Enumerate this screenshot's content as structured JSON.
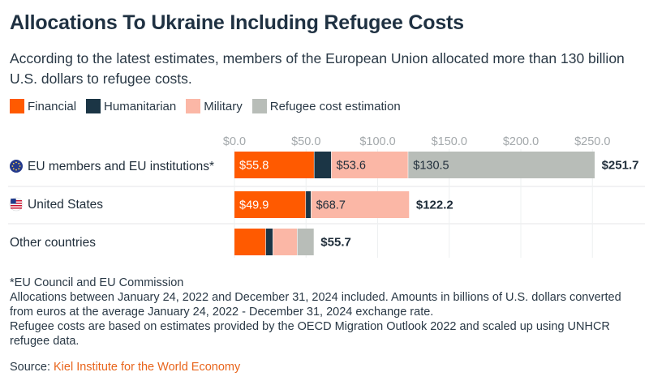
{
  "title": "Allocations To Ukraine Including Refugee Costs",
  "subtitle": "According to the latest estimates, members of the European Union allocated more than 130 billion U.S. dollars to refugee costs.",
  "chart_data": {
    "type": "bar",
    "orientation": "horizontal",
    "stacked": true,
    "categories": [
      "EU members and EU institutions*",
      "United States",
      "Other countries"
    ],
    "series": [
      {
        "name": "Financial",
        "color": "#ff5a00",
        "values": [
          55.8,
          49.9,
          22.0
        ]
      },
      {
        "name": "Humanitarian",
        "color": "#1b3545",
        "values": [
          12.0,
          3.7,
          5.0
        ]
      },
      {
        "name": "Military",
        "color": "#fbb7a6",
        "values": [
          53.6,
          68.7,
          17.0
        ]
      },
      {
        "name": "Refugee cost estimation",
        "color": "#b8bdb8",
        "values": [
          130.5,
          0,
          11.7
        ]
      }
    ],
    "segment_labels": [
      [
        "$55.8",
        "",
        "$53.6",
        "$130.5"
      ],
      [
        "$49.9",
        "",
        "$68.7",
        ""
      ],
      [
        "",
        "",
        "",
        ""
      ]
    ],
    "totals": [
      "$251.7",
      "$122.2",
      "$55.7"
    ],
    "total_values": [
      251.7,
      122.2,
      55.7
    ],
    "x_ticks": [
      "$0.0",
      "$50.0",
      "$100.0",
      "$150.0",
      "$200.0",
      "$250.0"
    ],
    "x_tick_values": [
      0,
      50,
      100,
      150,
      200,
      250
    ],
    "xlim": [
      0,
      260
    ],
    "legend_position": "top-left",
    "grid": true
  },
  "footnotes": [
    "*EU Council and EU Commission",
    "Allocations between January 24, 2022 and December 31, 2024 included. Amounts in billions of U.S. dollars converted from euros at the average January 24, 2022 - December 31, 2024 exchange rate.",
    "Refugee costs are based on estimates provided by the OECD Migration Outlook 2022 and scaled up using UNHCR refugee data."
  ],
  "source": {
    "label": "Source: ",
    "link_text": "Kiel Institute for the World Economy"
  },
  "icons": {
    "row_0": "eu-flag-icon",
    "row_1": "us-flag-icon"
  }
}
